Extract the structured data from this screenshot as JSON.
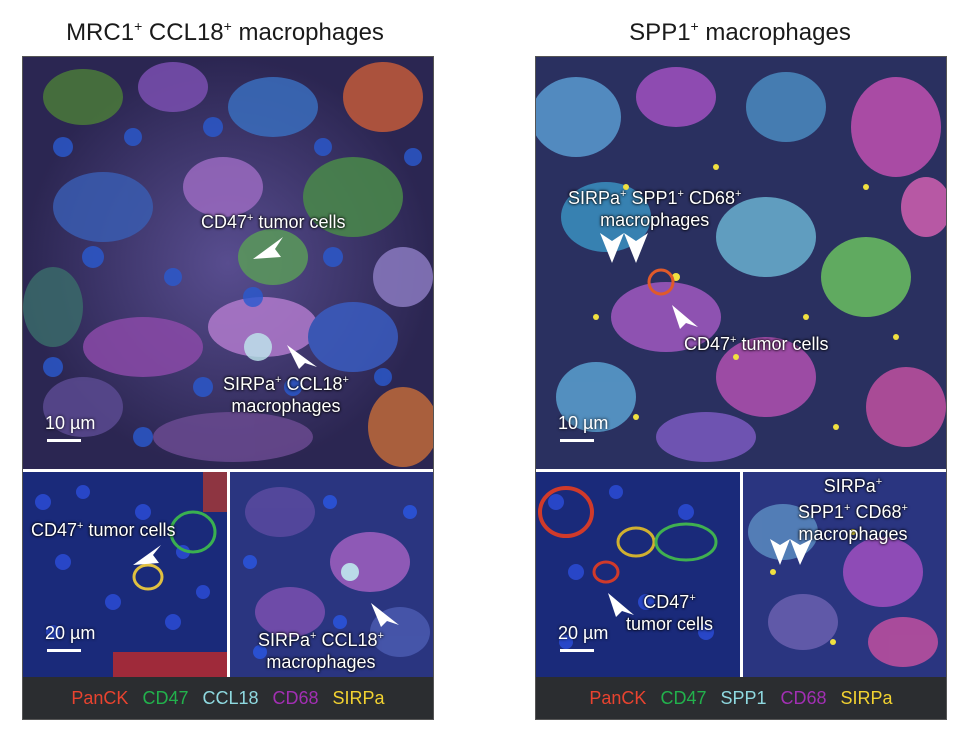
{
  "left": {
    "title_prefix": "MRC1",
    "title_sup1": "+",
    "title_mid": " CCL18",
    "title_sup2": "+",
    "title_suffix": " macrophages",
    "main": {
      "label1_text": "CD47",
      "label1_sup": "+",
      "label1_rest": " tumor cells",
      "label2_text": "SIRPa",
      "label2_sup": "+",
      "label2_mid": " CCL18",
      "label2_sup2": "+",
      "label2_line2": "macrophages",
      "scale": "10 µm"
    },
    "inset1": {
      "label_text": "CD47",
      "label_sup": "+",
      "label_rest": " tumor cells",
      "scale": "20 µm"
    },
    "inset2": {
      "label_text": "SIRPa",
      "label_sup": "+",
      "label_mid": " CCL18",
      "label_sup2": "+",
      "label_line2": "macrophages"
    },
    "legend": [
      {
        "text": "PanCK",
        "color": "#e8432f"
      },
      {
        "text": "CD47",
        "color": "#22b14c"
      },
      {
        "text": "CCL18",
        "color": "#8fd9e0"
      },
      {
        "text": "CD68",
        "color": "#a22fb3"
      },
      {
        "text": "SIRPa",
        "color": "#f2d230"
      }
    ]
  },
  "right": {
    "title_prefix": "SPP1",
    "title_sup": "+",
    "title_suffix": " macrophages",
    "main": {
      "label1_a": "SIRPa",
      "label1_a_sup": "+",
      "label1_b": " SPP1",
      "label1_b_sup": "+",
      "label1_c": " CD68",
      "label1_c_sup": "+",
      "label1_line2": "macrophages",
      "label2_text": "CD47",
      "label2_sup": "+",
      "label2_rest": " tumor cells",
      "scale": "10 µm"
    },
    "inset1": {
      "label_text": "CD47",
      "label_sup": "+",
      "label_line2": "tumor cells",
      "scale": "20 µm"
    },
    "inset2": {
      "label_a": "SIRPa",
      "label_a_sup": "+",
      "label_b": "SPP1",
      "label_b_sup": "+",
      "label_c": " CD68",
      "label_c_sup": "+",
      "label_line3": "macrophages"
    },
    "legend": [
      {
        "text": "PanCK",
        "color": "#e8432f"
      },
      {
        "text": "CD47",
        "color": "#22b14c"
      },
      {
        "text": "SPP1",
        "color": "#8fd9e0"
      },
      {
        "text": "CD68",
        "color": "#a22fb3"
      },
      {
        "text": "SIRPa",
        "color": "#f2d230"
      }
    ]
  }
}
